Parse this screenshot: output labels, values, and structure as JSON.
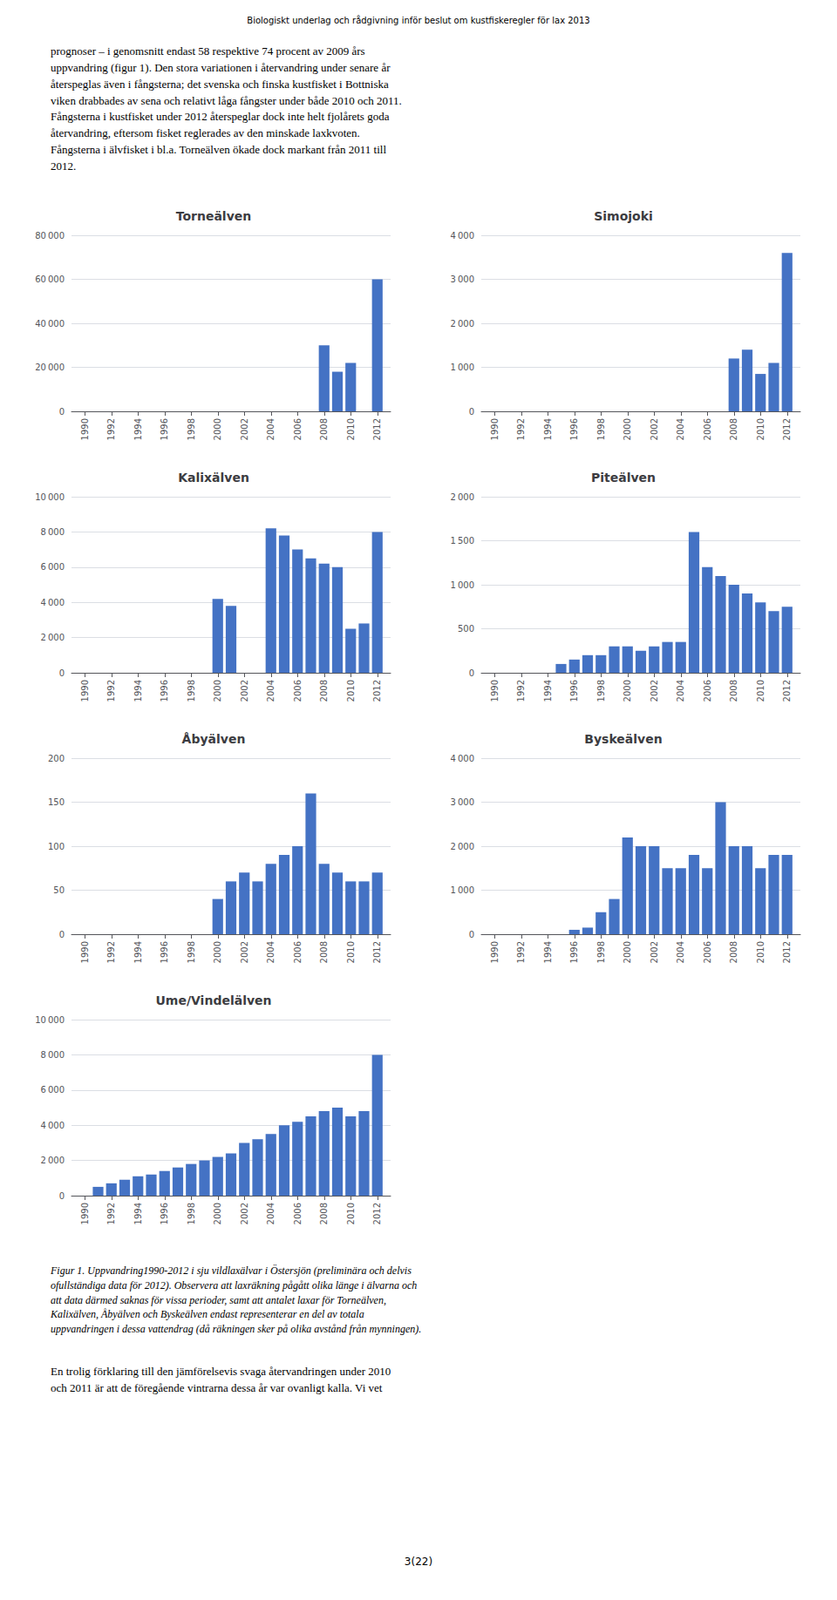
{
  "chart_data": [
    {
      "type": "bar",
      "title": "Torneälven",
      "x": [
        1990,
        1991,
        1992,
        1993,
        1994,
        1995,
        1996,
        1997,
        1998,
        1999,
        2000,
        2001,
        2002,
        2003,
        2004,
        2005,
        2006,
        2007,
        2008,
        2009,
        2010,
        2011,
        2012
      ],
      "values": [
        0,
        0,
        0,
        0,
        0,
        0,
        0,
        0,
        0,
        0,
        0,
        0,
        0,
        0,
        0,
        0,
        0,
        0,
        30000,
        18000,
        22000,
        0,
        60000
      ],
      "color": "#4472C4",
      "xlim": [
        1989,
        2013
      ],
      "xticks": [
        1990,
        1992,
        1994,
        1996,
        1998,
        2000,
        2002,
        2004,
        2006,
        2008,
        2010,
        2012
      ],
      "ylim": [
        0,
        80000
      ],
      "yticks": [
        0,
        {
          "value": 20000,
          "label": "20 000"
        },
        {
          "value": 40000,
          "label": "40 000"
        },
        {
          "value": 60000,
          "label": "60 000"
        },
        {
          "value": 80000,
          "label": "80 000"
        }
      ],
      "grid": true
    },
    {
      "type": "bar",
      "title": "Simojoki",
      "x": [
        1990,
        1991,
        1992,
        1993,
        1994,
        1995,
        1996,
        1997,
        1998,
        1999,
        2000,
        2001,
        2002,
        2003,
        2004,
        2005,
        2006,
        2007,
        2008,
        2009,
        2010,
        2011,
        2012
      ],
      "values": [
        0,
        0,
        0,
        0,
        0,
        0,
        0,
        0,
        0,
        0,
        0,
        0,
        0,
        0,
        0,
        0,
        0,
        0,
        1200,
        1400,
        850,
        1100,
        3600
      ],
      "color": "#4472C4",
      "xlim": [
        1989,
        2013
      ],
      "xticks": [
        1990,
        1992,
        1994,
        1996,
        1998,
        2000,
        2002,
        2004,
        2006,
        2008,
        2010,
        2012
      ],
      "ylim": [
        0,
        4000
      ],
      "yticks": [
        0,
        {
          "value": 1000,
          "label": "1 000"
        },
        {
          "value": 2000,
          "label": "2 000"
        },
        {
          "value": 3000,
          "label": "3 000"
        },
        {
          "value": 4000,
          "label": "4 000"
        }
      ],
      "grid": true
    },
    {
      "type": "bar",
      "title": "Kalixälven",
      "x": [
        1990,
        1991,
        1992,
        1993,
        1994,
        1995,
        1996,
        1997,
        1998,
        1999,
        2000,
        2001,
        2002,
        2003,
        2004,
        2005,
        2006,
        2007,
        2008,
        2009,
        2010,
        2011,
        2012
      ],
      "values": [
        0,
        0,
        0,
        0,
        0,
        0,
        0,
        0,
        0,
        0,
        4200,
        3800,
        0,
        0,
        8200,
        7800,
        7000,
        6500,
        6200,
        6000,
        2500,
        2800,
        8000
      ],
      "color": "#4472C4",
      "xlim": [
        1989,
        2013
      ],
      "xticks": [
        1990,
        1992,
        1994,
        1996,
        1998,
        2000,
        2002,
        2004,
        2006,
        2008,
        2010,
        2012
      ],
      "ylim": [
        0,
        10000
      ],
      "yticks": [
        0,
        {
          "value": 2000,
          "label": "2 000"
        },
        {
          "value": 4000,
          "label": "4 000"
        },
        {
          "value": 6000,
          "label": "6 000"
        },
        {
          "value": 8000,
          "label": "8 000"
        },
        {
          "value": 10000,
          "label": "10 000"
        }
      ],
      "grid": true
    },
    {
      "type": "bar",
      "title": "Piteälven",
      "x": [
        1990,
        1991,
        1992,
        1993,
        1994,
        1995,
        1996,
        1997,
        1998,
        1999,
        2000,
        2001,
        2002,
        2003,
        2004,
        2005,
        2006,
        2007,
        2008,
        2009,
        2010,
        2011,
        2012
      ],
      "values": [
        0,
        0,
        0,
        0,
        0,
        100,
        150,
        200,
        200,
        300,
        300,
        250,
        300,
        350,
        350,
        1600,
        1200,
        1100,
        1000,
        900,
        800,
        700,
        750
      ],
      "color": "#4472C4",
      "xlim": [
        1989,
        2013
      ],
      "xticks": [
        1990,
        1992,
        1994,
        1996,
        1998,
        2000,
        2002,
        2004,
        2006,
        2008,
        2010,
        2012
      ],
      "ylim": [
        0,
        2000
      ],
      "yticks": [
        0,
        500,
        {
          "value": 1000,
          "label": "1 000"
        },
        {
          "value": 1500,
          "label": "1 500"
        },
        {
          "value": 2000,
          "label": "2 000"
        }
      ],
      "grid": true
    },
    {
      "type": "bar",
      "title": "Åbyälven",
      "x": [
        1990,
        1991,
        1992,
        1993,
        1994,
        1995,
        1996,
        1997,
        1998,
        1999,
        2000,
        2001,
        2002,
        2003,
        2004,
        2005,
        2006,
        2007,
        2008,
        2009,
        2010,
        2011,
        2012
      ],
      "values": [
        0,
        0,
        0,
        0,
        0,
        0,
        0,
        0,
        0,
        0,
        40,
        60,
        70,
        60,
        80,
        90,
        100,
        160,
        80,
        70,
        60,
        60,
        70
      ],
      "color": "#4472C4",
      "xlim": [
        1989,
        2013
      ],
      "xticks": [
        1990,
        1992,
        1994,
        1996,
        1998,
        2000,
        2002,
        2004,
        2006,
        2008,
        2010,
        2012
      ],
      "ylim": [
        0,
        200
      ],
      "yticks": [
        0,
        50,
        100,
        150,
        200
      ],
      "grid": true
    },
    {
      "type": "bar",
      "title": "Byskeälven",
      "x": [
        1990,
        1991,
        1992,
        1993,
        1994,
        1995,
        1996,
        1997,
        1998,
        1999,
        2000,
        2001,
        2002,
        2003,
        2004,
        2005,
        2006,
        2007,
        2008,
        2009,
        2010,
        2011,
        2012
      ],
      "values": [
        0,
        0,
        0,
        0,
        0,
        0,
        100,
        150,
        500,
        800,
        2200,
        2000,
        2000,
        1500,
        1500,
        1800,
        1500,
        3000,
        2000,
        2000,
        1500,
        1800,
        1800
      ],
      "color": "#4472C4",
      "xlim": [
        1989,
        2013
      ],
      "xticks": [
        1990,
        1992,
        1994,
        1996,
        1998,
        2000,
        2002,
        2004,
        2006,
        2008,
        2010,
        2012
      ],
      "ylim": [
        0,
        4000
      ],
      "yticks": [
        0,
        {
          "value": 1000,
          "label": "1 000"
        },
        {
          "value": 2000,
          "label": "2 000"
        },
        {
          "value": 3000,
          "label": "3 000"
        },
        {
          "value": 4000,
          "label": "4 000"
        }
      ],
      "grid": true
    },
    {
      "type": "bar",
      "title": "Ume/Vindelälven",
      "x": [
        1990,
        1991,
        1992,
        1993,
        1994,
        1995,
        1996,
        1997,
        1998,
        1999,
        2000,
        2001,
        2002,
        2003,
        2004,
        2005,
        2006,
        2007,
        2008,
        2009,
        2010,
        2011,
        2012
      ],
      "values": [
        0,
        500,
        700,
        900,
        1100,
        1200,
        1400,
        1600,
        1800,
        2000,
        2200,
        2400,
        3000,
        3200,
        3500,
        4000,
        4200,
        4500,
        4800,
        5000,
        4500,
        4800,
        8000
      ],
      "color": "#4472C4",
      "xlim": [
        1989,
        2013
      ],
      "xticks": [
        1990,
        1992,
        1994,
        1996,
        1998,
        2000,
        2002,
        2004,
        2006,
        2008,
        2010,
        2012
      ],
      "ylim": [
        0,
        10000
      ],
      "yticks": [
        0,
        {
          "value": 2000,
          "label": "2 000"
        },
        {
          "value": 4000,
          "label": "4 000"
        },
        {
          "value": 6000,
          "label": "6 000"
        },
        {
          "value": 8000,
          "label": "8 000"
        },
        {
          "value": 10000,
          "label": "10 000"
        }
      ],
      "grid": true
    }
  ],
  "annotations": [
    "Biologiskt underlag och rådgivning inför beslut om kustfiskeregler för lax 2013",
    "prognoser – i genomsnitt endast 58 respektive 74 procent av 2009 års\nuppvandring (figur 1). Den stora variationen i återvandring under senare år\nåterspeglas även i fångsterna; det svenska och finska kustfisket i Bottniska\nviken drabbades av sena och relativt låga fångster under både 2010 och 2011.\nFångsterna i kustfisket under 2012 återspeglar dock inte helt fjolårets goda\nåtervandring, eftersom fisket reglerades av den minskade laxkvoten.\nFångsterna i älvfisket i bl.a. Torneälven ökade dock markant från 2011 till\n2012.",
    "Figur 1. Uppvandring1990-2012 i sju vildlaxälvar i Östersjön (preliminära och delvis\nofullständiga data för 2012). Observera att laxräkning pågått olika länge i älvarna och\natt data därmed saknas för vissa perioder, samt att antalet laxar för Torneälven,\nKalixälven, Åbyälven och Byskeälven endast representerar en del av totala\nuppvandringen i dessa vattendrag (då räkningen sker på olika avstånd från mynningen).",
    "En trolig förklaring till den jämförelsevis svaga återvandringen under 2010\noch 2011 är att de föregående vintrarna dessa år var ovanligt kalla. Vi vet",
    "3(22)"
  ]
}
